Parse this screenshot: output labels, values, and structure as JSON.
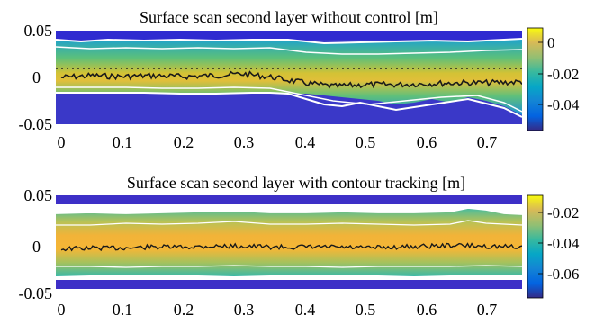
{
  "chart_data": [
    {
      "type": "heatmap",
      "title": "Surface scan second layer without control [m]",
      "xlabel": "",
      "ylabel": "",
      "xlim": [
        0,
        0.76
      ],
      "ylim": [
        -0.05,
        0.05
      ],
      "x_ticks": [
        "0",
        "0.1",
        "0.2",
        "0.3",
        "0.4",
        "0.5",
        "0.6",
        "0.7"
      ],
      "y_ticks": [
        "0.05",
        "0",
        "-0.05"
      ],
      "colorbar": {
        "range": [
          -0.05,
          0.012
        ],
        "ticks": [
          "0",
          "-0.02",
          "-0.04"
        ],
        "colormap": "parula"
      },
      "reference_line": {
        "style": "dotted",
        "y": 0.008
      },
      "series": [
        {
          "x": [
            0,
            0.05,
            0.1,
            0.15,
            0.2,
            0.25,
            0.3,
            0.35,
            0.4,
            0.45,
            0.5,
            0.55,
            0.6,
            0.65,
            0.7,
            0.76
          ],
          "values": [
            0.002,
            0.004,
            0.003,
            0.004,
            0.003,
            0.004,
            0.006,
            0.002,
            -0.004,
            -0.008,
            -0.006,
            -0.006,
            -0.005,
            -0.004,
            -0.004,
            -0.003
          ]
        }
      ]
    },
    {
      "type": "heatmap",
      "title": "Surface scan second layer with contour tracking [m]",
      "xlabel": "",
      "ylabel": "",
      "xlim": [
        0,
        0.76
      ],
      "ylim": [
        -0.05,
        0.05
      ],
      "x_ticks": [
        "0",
        "0.1",
        "0.2",
        "0.3",
        "0.4",
        "0.5",
        "0.6",
        "0.7"
      ],
      "y_ticks": [
        "0.05",
        "0",
        "-0.05"
      ],
      "colorbar": {
        "range": [
          -0.07,
          -0.01
        ],
        "ticks": [
          "-0.02",
          "-0.04",
          "-0.06"
        ],
        "colormap": "parula"
      },
      "series": [
        {
          "x": [
            0,
            0.05,
            0.1,
            0.15,
            0.2,
            0.25,
            0.3,
            0.35,
            0.4,
            0.45,
            0.5,
            0.55,
            0.6,
            0.65,
            0.7,
            0.76
          ],
          "values": [
            -0.003,
            -0.002,
            -0.002,
            -0.001,
            -0.001,
            0.0,
            0.0,
            -0.001,
            -0.001,
            -0.001,
            -0.002,
            -0.001,
            0.0,
            0.001,
            0.0,
            -0.001
          ]
        }
      ]
    }
  ]
}
